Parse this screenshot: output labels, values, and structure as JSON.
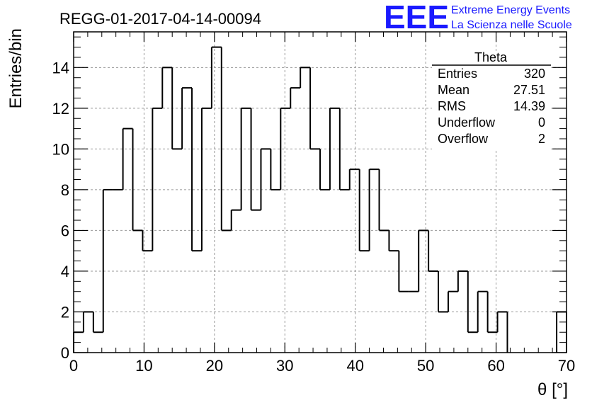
{
  "title": "REGG-01-2017-04-14-00094",
  "logo": {
    "mark": "EEE",
    "line1": "Extreme Energy Events",
    "line2": "La Scienza nelle Scuole",
    "color": "#1a1aff"
  },
  "stats": {
    "name": "Theta",
    "rows": [
      {
        "label": "Entries",
        "value": "320"
      },
      {
        "label": "Mean",
        "value": "27.51"
      },
      {
        "label": "RMS",
        "value": "14.39"
      },
      {
        "label": "Underflow",
        "value": "0"
      },
      {
        "label": "Overflow",
        "value": "2"
      }
    ]
  },
  "chart_data": {
    "type": "histogram",
    "xlabel": "θ [°]",
    "ylabel": "Entries/bin",
    "xlim": [
      0,
      70
    ],
    "ylim": [
      0,
      15.75
    ],
    "x_ticks": [
      0,
      10,
      20,
      30,
      40,
      50,
      60,
      70
    ],
    "y_ticks": [
      0,
      2,
      4,
      6,
      8,
      10,
      12,
      14
    ],
    "grid": true,
    "bin_width": 1.4,
    "bin_start": 0,
    "values": [
      1,
      2,
      1,
      8,
      8,
      11,
      6,
      5,
      12,
      14,
      10,
      13,
      5,
      12,
      15,
      6,
      7,
      12,
      7,
      10,
      8,
      12,
      13,
      14,
      10,
      8,
      12,
      8,
      9,
      5,
      9,
      6,
      5,
      3,
      3,
      6,
      4,
      2,
      3,
      4,
      1,
      3,
      1,
      2,
      0,
      0,
      0,
      0,
      0,
      2
    ]
  }
}
